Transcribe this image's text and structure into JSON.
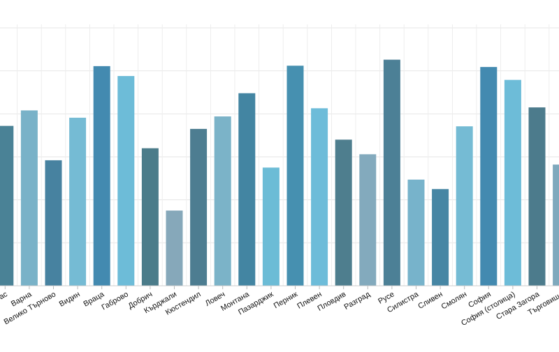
{
  "chart_data": {
    "type": "bar",
    "title": "",
    "xlabel": "",
    "ylabel": "",
    "ylim": [
      0,
      60
    ],
    "grid": true,
    "categories": [
      "Бургас",
      "Варна",
      "Велико Търново",
      "Видин",
      "Враца",
      "Габрово",
      "Добрич",
      "Кърджали",
      "Кюстендил",
      "Ловеч",
      "Монтана",
      "Пазарджик",
      "Перник",
      "Плевен",
      "Пловдив",
      "Разград",
      "Русе",
      "Силистра",
      "Сливен",
      "Смолян",
      "София",
      "София (столица)",
      "Стара Загора",
      "Търговище"
    ],
    "values": [
      37.2,
      40.8,
      29.2,
      39.1,
      51.1,
      48.8,
      32.0,
      17.5,
      36.5,
      39.4,
      44.8,
      27.5,
      51.2,
      41.3,
      34.0,
      30.6,
      52.6,
      24.7,
      22.5,
      37.1,
      50.9,
      47.9,
      41.5,
      28.2
    ],
    "bar_colors": [
      "#4a8296",
      "#79b2c8",
      "#4782a0",
      "#75bbd4",
      "#438ab0",
      "#6dbcd8",
      "#4b7c8a",
      "#86a8ba",
      "#4d7d91",
      "#7bb3c8",
      "#4385a2",
      "#6cbcd6",
      "#4690b0",
      "#6dbcd9",
      "#4e7e8e",
      "#83aabd",
      "#4c8096",
      "#77b3cb",
      "#4686a4",
      "#75bbd4",
      "#438ab0",
      "#6dbcd8",
      "#4c7b8c",
      "#7fa9bd"
    ]
  }
}
